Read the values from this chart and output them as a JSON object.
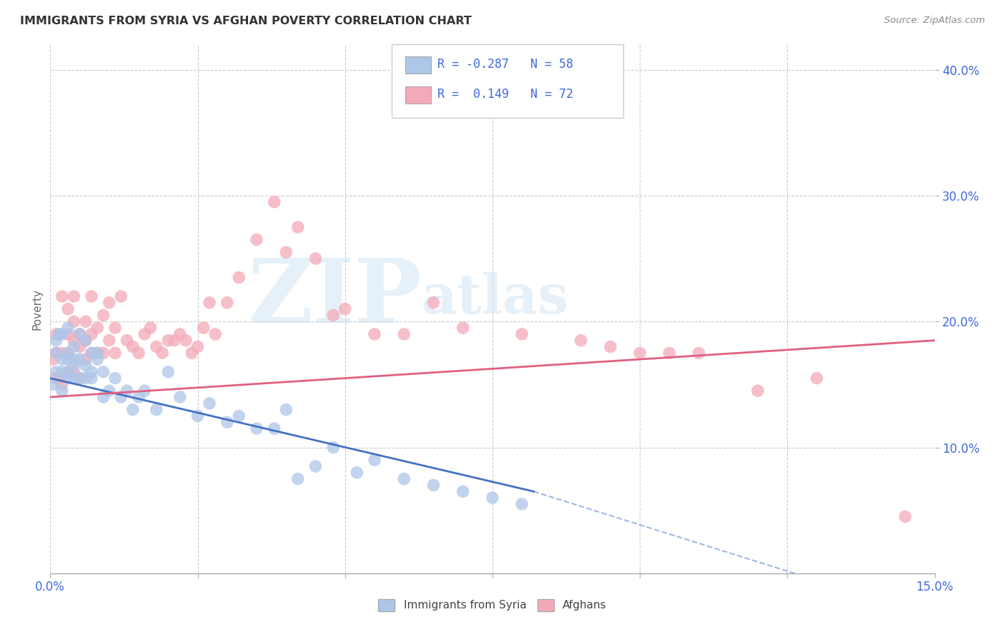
{
  "title": "IMMIGRANTS FROM SYRIA VS AFGHAN POVERTY CORRELATION CHART",
  "source": "Source: ZipAtlas.com",
  "ylabel": "Poverty",
  "xlim": [
    0.0,
    0.15
  ],
  "ylim": [
    0.0,
    0.42
  ],
  "xtick_positions": [
    0.0,
    0.025,
    0.05,
    0.075,
    0.1,
    0.125,
    0.15
  ],
  "xtick_labels_show": [
    "0.0%",
    "",
    "",
    "",
    "",
    "",
    "15.0%"
  ],
  "ytick_positions": [
    0.1,
    0.2,
    0.3,
    0.4
  ],
  "ytick_labels": [
    "10.0%",
    "20.0%",
    "30.0%",
    "40.0%"
  ],
  "background_color": "#ffffff",
  "grid_color": "#cccccc",
  "syria_color": "#aec6e8",
  "afghan_color": "#f4a9b8",
  "syria_line_color": "#4472c4",
  "afghan_line_color": "#e06080",
  "syria_R": -0.287,
  "syria_N": 58,
  "afghan_R": 0.149,
  "afghan_N": 72,
  "legend_color": "#4169e1",
  "watermark_text": "ZIPatlas",
  "syria_x": [
    0.0005,
    0.001,
    0.001,
    0.001,
    0.0015,
    0.002,
    0.002,
    0.002,
    0.002,
    0.003,
    0.003,
    0.003,
    0.003,
    0.003,
    0.004,
    0.004,
    0.004,
    0.004,
    0.005,
    0.005,
    0.005,
    0.006,
    0.006,
    0.006,
    0.007,
    0.007,
    0.007,
    0.008,
    0.008,
    0.009,
    0.009,
    0.01,
    0.011,
    0.012,
    0.013,
    0.014,
    0.015,
    0.016,
    0.018,
    0.02,
    0.022,
    0.025,
    0.027,
    0.03,
    0.032,
    0.035,
    0.038,
    0.04,
    0.042,
    0.045,
    0.048,
    0.052,
    0.055,
    0.06,
    0.065,
    0.07,
    0.075,
    0.08
  ],
  "syria_y": [
    0.15,
    0.175,
    0.16,
    0.185,
    0.19,
    0.145,
    0.17,
    0.16,
    0.19,
    0.16,
    0.175,
    0.155,
    0.17,
    0.195,
    0.165,
    0.18,
    0.155,
    0.17,
    0.155,
    0.17,
    0.19,
    0.155,
    0.165,
    0.185,
    0.16,
    0.175,
    0.155,
    0.17,
    0.175,
    0.14,
    0.16,
    0.145,
    0.155,
    0.14,
    0.145,
    0.13,
    0.14,
    0.145,
    0.13,
    0.16,
    0.14,
    0.125,
    0.135,
    0.12,
    0.125,
    0.115,
    0.115,
    0.13,
    0.075,
    0.085,
    0.1,
    0.08,
    0.09,
    0.075,
    0.07,
    0.065,
    0.06,
    0.055
  ],
  "afghan_x": [
    0.0005,
    0.001,
    0.001,
    0.001,
    0.0015,
    0.002,
    0.002,
    0.002,
    0.003,
    0.003,
    0.003,
    0.003,
    0.004,
    0.004,
    0.004,
    0.004,
    0.005,
    0.005,
    0.005,
    0.006,
    0.006,
    0.006,
    0.007,
    0.007,
    0.007,
    0.008,
    0.008,
    0.009,
    0.009,
    0.01,
    0.01,
    0.011,
    0.011,
    0.012,
    0.013,
    0.014,
    0.015,
    0.016,
    0.017,
    0.018,
    0.019,
    0.02,
    0.021,
    0.022,
    0.023,
    0.024,
    0.025,
    0.026,
    0.027,
    0.028,
    0.03,
    0.032,
    0.035,
    0.038,
    0.04,
    0.042,
    0.045,
    0.048,
    0.05,
    0.055,
    0.06,
    0.065,
    0.07,
    0.08,
    0.09,
    0.095,
    0.1,
    0.105,
    0.11,
    0.12,
    0.13,
    0.145
  ],
  "afghan_y": [
    0.17,
    0.155,
    0.175,
    0.19,
    0.155,
    0.15,
    0.175,
    0.22,
    0.16,
    0.175,
    0.19,
    0.21,
    0.16,
    0.185,
    0.2,
    0.22,
    0.155,
    0.18,
    0.19,
    0.17,
    0.185,
    0.2,
    0.175,
    0.19,
    0.22,
    0.175,
    0.195,
    0.175,
    0.205,
    0.185,
    0.215,
    0.175,
    0.195,
    0.22,
    0.185,
    0.18,
    0.175,
    0.19,
    0.195,
    0.18,
    0.175,
    0.185,
    0.185,
    0.19,
    0.185,
    0.175,
    0.18,
    0.195,
    0.215,
    0.19,
    0.215,
    0.235,
    0.265,
    0.295,
    0.255,
    0.275,
    0.25,
    0.205,
    0.21,
    0.19,
    0.19,
    0.215,
    0.195,
    0.19,
    0.185,
    0.18,
    0.175,
    0.175,
    0.175,
    0.145,
    0.155,
    0.045
  ]
}
